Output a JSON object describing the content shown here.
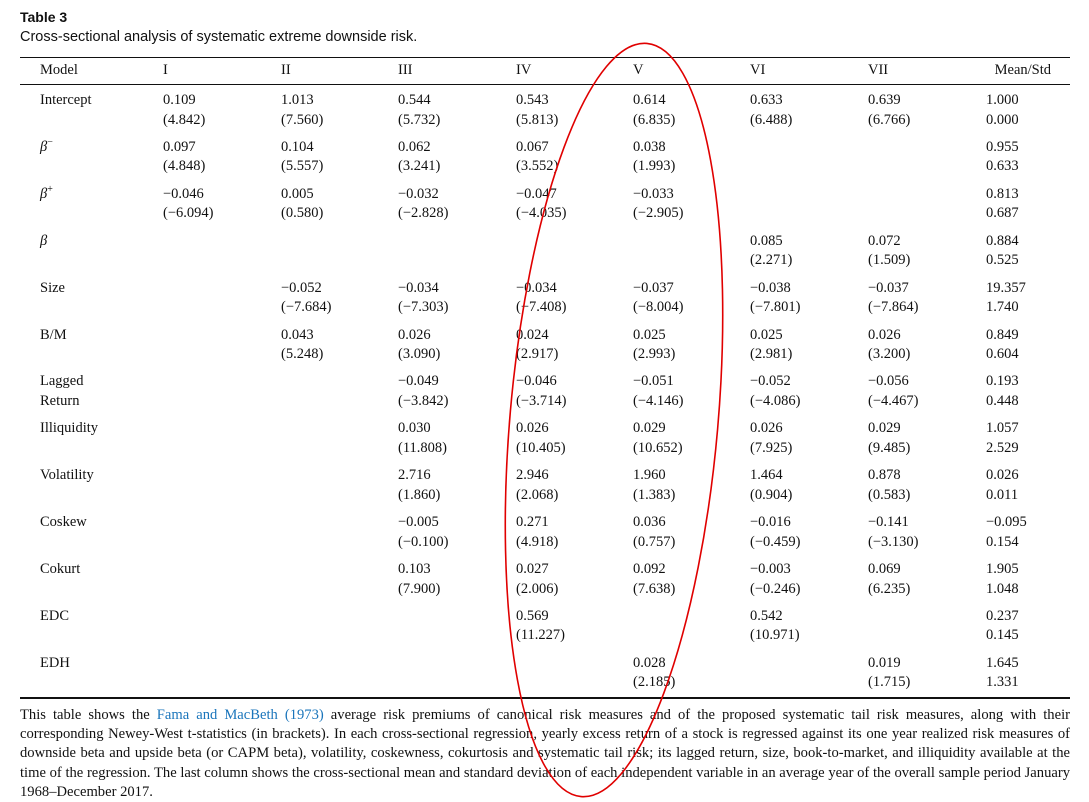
{
  "title": "Table 3",
  "caption": "Cross-sectional analysis of systematic extreme downside risk.",
  "table": {
    "header": [
      "Model",
      "I",
      "II",
      "III",
      "IV",
      "V",
      "VI",
      "VII",
      "Mean/Std"
    ],
    "rows": [
      {
        "label": "Intercept",
        "cells": [
          [
            "0.109",
            "(4.842)"
          ],
          [
            "1.013",
            "(7.560)"
          ],
          [
            "0.544",
            "(5.732)"
          ],
          [
            "0.543",
            "(5.813)"
          ],
          [
            "0.614",
            "(6.835)"
          ],
          [
            "0.633",
            "(6.488)"
          ],
          [
            "0.639",
            "(6.766)"
          ],
          [
            "1.000",
            "0.000"
          ]
        ]
      },
      {
        "label": "β",
        "sup": "−",
        "cells": [
          [
            "0.097",
            "(4.848)"
          ],
          [
            "0.104",
            "(5.557)"
          ],
          [
            "0.062",
            "(3.241)"
          ],
          [
            "0.067",
            "(3.552)"
          ],
          [
            "0.038",
            "(1.993)"
          ],
          null,
          null,
          [
            "0.955",
            "0.633"
          ]
        ]
      },
      {
        "label": "β",
        "sup": "+",
        "cells": [
          [
            "−0.046",
            "(−6.094)"
          ],
          [
            "0.005",
            "(0.580)"
          ],
          [
            "−0.032",
            "(−2.828)"
          ],
          [
            "−0.047",
            "(−4.035)"
          ],
          [
            "−0.033",
            "(−2.905)"
          ],
          null,
          null,
          [
            "0.813",
            "0.687"
          ]
        ]
      },
      {
        "label": "β",
        "cells": [
          null,
          null,
          null,
          null,
          null,
          [
            "0.085",
            "(2.271)"
          ],
          [
            "0.072",
            "(1.509)"
          ],
          [
            "0.884",
            "0.525"
          ]
        ]
      },
      {
        "label": "Size",
        "cells": [
          null,
          [
            "−0.052",
            "(−7.684)"
          ],
          [
            "−0.034",
            "(−7.303)"
          ],
          [
            "−0.034",
            "(−7.408)"
          ],
          [
            "−0.037",
            "(−8.004)"
          ],
          [
            "−0.038",
            "(−7.801)"
          ],
          [
            "−0.037",
            "(−7.864)"
          ],
          [
            "19.357",
            "1.740"
          ]
        ]
      },
      {
        "label": "B/M",
        "cells": [
          null,
          [
            "0.043",
            "(5.248)"
          ],
          [
            "0.026",
            "(3.090)"
          ],
          [
            "0.024",
            "(2.917)"
          ],
          [
            "0.025",
            "(2.993)"
          ],
          [
            "0.025",
            "(2.981)"
          ],
          [
            "0.026",
            "(3.200)"
          ],
          [
            "0.849",
            "0.604"
          ]
        ]
      },
      {
        "label": "Lagged\nReturn",
        "cells": [
          null,
          null,
          [
            "−0.049",
            "(−3.842)"
          ],
          [
            "−0.046",
            "(−3.714)"
          ],
          [
            "−0.051",
            "(−4.146)"
          ],
          [
            "−0.052",
            "(−4.086)"
          ],
          [
            "−0.056",
            "(−4.467)"
          ],
          [
            "0.193",
            "0.448"
          ]
        ]
      },
      {
        "label": "Illiquidity",
        "cells": [
          null,
          null,
          [
            "0.030",
            "(11.808)"
          ],
          [
            "0.026",
            "(10.405)"
          ],
          [
            "0.029",
            "(10.652)"
          ],
          [
            "0.026",
            "(7.925)"
          ],
          [
            "0.029",
            "(9.485)"
          ],
          [
            "1.057",
            "2.529"
          ]
        ]
      },
      {
        "label": "Volatility",
        "cells": [
          null,
          null,
          [
            "2.716",
            "(1.860)"
          ],
          [
            "2.946",
            "(2.068)"
          ],
          [
            "1.960",
            "(1.383)"
          ],
          [
            "1.464",
            "(0.904)"
          ],
          [
            "0.878",
            "(0.583)"
          ],
          [
            "0.026",
            "0.011"
          ]
        ]
      },
      {
        "label": "Coskew",
        "cells": [
          null,
          null,
          [
            "−0.005",
            "(−0.100)"
          ],
          [
            "0.271",
            "(4.918)"
          ],
          [
            "0.036",
            "(0.757)"
          ],
          [
            "−0.016",
            "(−0.459)"
          ],
          [
            "−0.141",
            "(−3.130)"
          ],
          [
            "−0.095",
            "0.154"
          ]
        ]
      },
      {
        "label": "Cokurt",
        "cells": [
          null,
          null,
          [
            "0.103",
            "(7.900)"
          ],
          [
            "0.027",
            "(2.006)"
          ],
          [
            "0.092",
            "(7.638)"
          ],
          [
            "−0.003",
            "(−0.246)"
          ],
          [
            "0.069",
            "(6.235)"
          ],
          [
            "1.905",
            "1.048"
          ]
        ]
      },
      {
        "label": "EDC",
        "cells": [
          null,
          null,
          null,
          [
            "0.569",
            "(11.227)"
          ],
          null,
          [
            "0.542",
            "(10.971)"
          ],
          null,
          [
            "0.237",
            "0.145"
          ]
        ]
      },
      {
        "label": "EDH",
        "cells": [
          null,
          null,
          null,
          null,
          [
            "0.028",
            "(2.185)"
          ],
          null,
          [
            "0.019",
            "(1.715)"
          ],
          [
            "1.645",
            "1.331"
          ]
        ]
      }
    ]
  },
  "footnote": {
    "before": "This table shows the ",
    "link": "Fama and MacBeth (1973)",
    "after": " average risk premiums of canonical risk measures and of the proposed systematic tail risk measures, along with their corresponding Newey-West t-statistics (in brackets). In each cross-sectional regression, yearly excess return of a stock is regressed against its one year realized risk measures of downside beta and upside beta (or CAPM beta), volatility, coskewness, cokurtosis and systematic tail risk; its lagged return, size, book-to-market, and illiquidity available at the time of the regression. The last column shows the cross-sectional mean and standard deviation of each independent variable in an average year of the overall sample period January 1968–December 2017."
  }
}
